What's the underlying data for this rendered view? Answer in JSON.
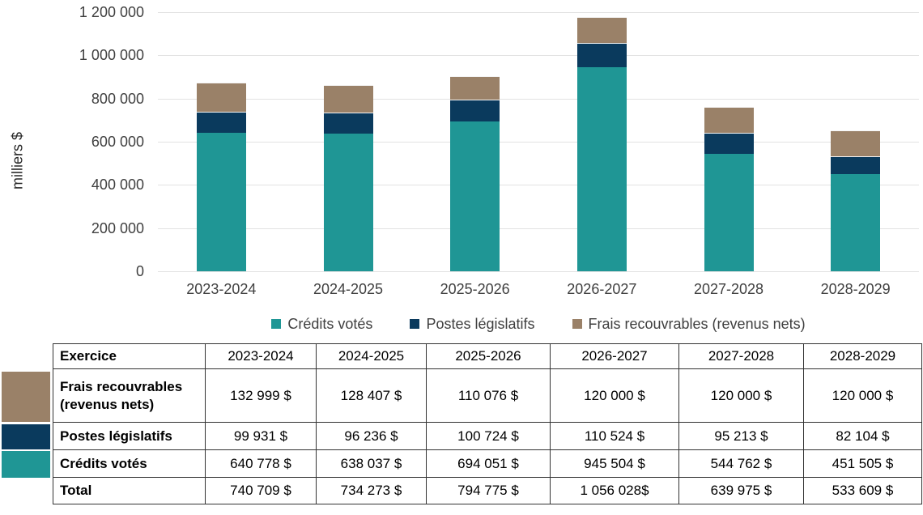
{
  "colors": {
    "teal": "#1F9695",
    "navy": "#0A3A5D",
    "tan": "#9A8168",
    "gridline": "#E2E2E2",
    "axis_text": "#404040",
    "table_border": "#333333"
  },
  "chart_data": {
    "type": "bar",
    "stacked": true,
    "title": "",
    "xlabel": "",
    "ylabel": "milliers $",
    "categories": [
      "2023-2024",
      "2024-2025",
      "2025-2026",
      "2026-2027",
      "2027-2028",
      "2028-2029"
    ],
    "series": [
      {
        "name": "Crédits votés",
        "color": "#1F9695",
        "values": [
          640778,
          638037,
          694051,
          945504,
          544762,
          451505
        ]
      },
      {
        "name": "Postes législatifs",
        "color": "#0A3A5D",
        "values": [
          99931,
          96236,
          100724,
          110524,
          95213,
          82104
        ]
      },
      {
        "name": "Frais recouvrables (revenus nets)",
        "color": "#9A8168",
        "values": [
          132999,
          128407,
          110076,
          120000,
          120000,
          120000
        ]
      }
    ],
    "ylim": [
      0,
      1200000
    ],
    "yticks": [
      {
        "value": 0,
        "label": "0"
      },
      {
        "value": 200000,
        "label": "200 000"
      },
      {
        "value": 400000,
        "label": "400 000"
      },
      {
        "value": 600000,
        "label": "600 000"
      },
      {
        "value": 800000,
        "label": "800 000"
      },
      {
        "value": 1000000,
        "label": "1 000 000"
      },
      {
        "value": 1200000,
        "label": "1 200 000"
      }
    ],
    "grid": true,
    "legend_position": "bottom"
  },
  "table": {
    "row_header": "Exercice",
    "columns": [
      "2023-2024",
      "2024-2025",
      "2025-2026",
      "2026-2027",
      "2027-2028",
      "2028-2029"
    ],
    "rows": [
      {
        "label": "Frais recouvrables (revenus nets)",
        "swatch_color": "#9A8168",
        "values": [
          "132 999 $",
          "128 407 $",
          "110 076 $",
          "120 000 $",
          "120 000 $",
          "120 000 $"
        ]
      },
      {
        "label": "Postes législatifs",
        "swatch_color": "#0A3A5D",
        "values": [
          "99 931 $",
          "96 236 $",
          "100 724 $",
          "110 524 $",
          "95 213 $",
          "82 104 $"
        ]
      },
      {
        "label": "Crédits votés",
        "swatch_color": "#1F9695",
        "values": [
          "640 778 $",
          "638 037 $",
          "694 051 $",
          "945 504 $",
          "544 762 $",
          "451 505 $"
        ]
      },
      {
        "label": "Total",
        "swatch_color": null,
        "values": [
          "740 709 $",
          "734 273 $",
          "794 775 $",
          "1 056 028$",
          "639 975 $",
          "533 609 $"
        ]
      }
    ]
  }
}
